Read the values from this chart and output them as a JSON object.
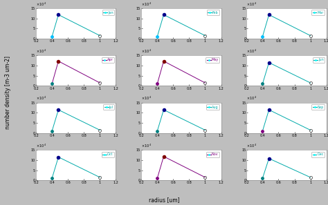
{
  "xlabel": "radius [um]",
  "ylabel": "number density [m-3 um-2]",
  "months": [
    "Jan",
    "Feb",
    "Mar",
    "Apr",
    "May",
    "Jun",
    "Jul",
    "Aug",
    "Sep",
    "Oct",
    "Nov",
    "Dec"
  ],
  "xlim": [
    0.2,
    1.2
  ],
  "ylim": [
    0,
    15
  ],
  "yticks": [
    0,
    5,
    10,
    15
  ],
  "xticks": [
    0.2,
    0.4,
    0.6,
    0.8,
    1.0,
    1.2
  ],
  "background_color": "#bebebe",
  "axes_facecolor": "#ffffff",
  "data": {
    "Jan": {
      "x": [
        0.4,
        0.48,
        1.0
      ],
      "y": [
        1.1,
        11.8,
        1.5
      ],
      "line_color": "#00aaaa",
      "marker1": "#00bfff",
      "marker2": "#00008b"
    },
    "Feb": {
      "x": [
        0.4,
        0.48,
        1.0
      ],
      "y": [
        1.1,
        11.8,
        1.5
      ],
      "line_color": "#00aaaa",
      "marker1": "#00bfff",
      "marker2": "#00008b"
    },
    "Mar": {
      "x": [
        0.4,
        0.48,
        1.0
      ],
      "y": [
        1.1,
        11.8,
        1.5
      ],
      "line_color": "#00aaaa",
      "marker1": "#00bfff",
      "marker2": "#00008b"
    },
    "Apr": {
      "x": [
        0.4,
        0.48,
        1.0
      ],
      "y": [
        1.1,
        12.2,
        1.5
      ],
      "line_color": "#7f007f",
      "marker1": "#008080",
      "marker2": "#800000"
    },
    "May": {
      "x": [
        0.4,
        0.48,
        1.0
      ],
      "y": [
        1.1,
        12.2,
        1.5
      ],
      "line_color": "#7f007f",
      "marker1": "#800080",
      "marker2": "#800000"
    },
    "Jun": {
      "x": [
        0.4,
        0.48,
        1.0
      ],
      "y": [
        1.1,
        11.5,
        1.5
      ],
      "line_color": "#00aaaa",
      "marker1": "#008080",
      "marker2": "#00008b"
    },
    "Jul": {
      "x": [
        0.4,
        0.48,
        1.0
      ],
      "y": [
        1.1,
        11.5,
        1.5
      ],
      "line_color": "#00aaaa",
      "marker1": "#008080",
      "marker2": "#00008b"
    },
    "Aug": {
      "x": [
        0.4,
        0.48,
        1.0
      ],
      "y": [
        1.1,
        11.5,
        1.5
      ],
      "line_color": "#00aaaa",
      "marker1": "#008080",
      "marker2": "#00008b"
    },
    "Sep": {
      "x": [
        0.4,
        0.48,
        1.0
      ],
      "y": [
        1.1,
        11.5,
        1.5
      ],
      "line_color": "#00aaaa",
      "marker1": "#800080",
      "marker2": "#00008b"
    },
    "Oct": {
      "x": [
        0.4,
        0.48,
        1.0
      ],
      "y": [
        1.1,
        11.5,
        1.5
      ],
      "line_color": "#00aaaa",
      "marker1": "#008080",
      "marker2": "#00008b"
    },
    "Nov": {
      "x": [
        0.4,
        0.48,
        1.0
      ],
      "y": [
        1.1,
        11.8,
        1.5
      ],
      "line_color": "#7f007f",
      "marker1": "#800080",
      "marker2": "#800000"
    },
    "Dec": {
      "x": [
        0.4,
        0.48,
        1.0
      ],
      "y": [
        1.1,
        10.8,
        1.5
      ],
      "line_color": "#00aaaa",
      "marker1": "#008080",
      "marker2": "#00008b"
    }
  }
}
